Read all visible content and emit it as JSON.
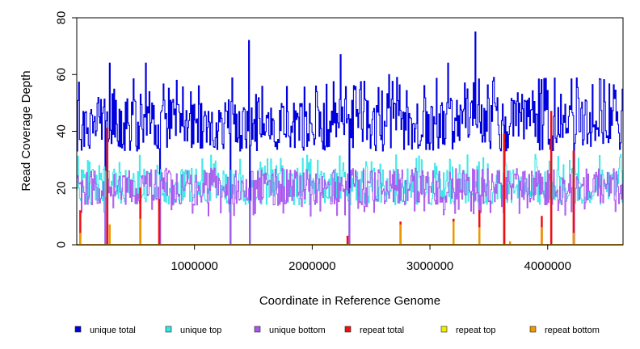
{
  "chart_data": {
    "type": "line",
    "title": "",
    "xlabel": "Coordinate in Reference Genome",
    "ylabel": "Read Coverage Depth",
    "xlim": [
      0,
      4640000
    ],
    "ylim": [
      0,
      80
    ],
    "x_ticks": [
      1000000,
      2000000,
      3000000,
      4000000
    ],
    "x_tick_labels": [
      "1000000",
      "2000000",
      "3000000",
      "4000000"
    ],
    "y_ticks": [
      0,
      20,
      40,
      60,
      80
    ],
    "y_tick_labels": [
      "0",
      "20",
      "40",
      "60",
      "80"
    ],
    "grid": false,
    "legend_position": "bottom",
    "colors": {
      "unique_total": "#0000dd",
      "unique_top": "#33e6e6",
      "unique_bottom": "#aa55ee",
      "repeat_total": "#ee1111",
      "repeat_top": "#eeee00",
      "repeat_bottom": "#ee9900"
    },
    "legend": [
      {
        "label": "unique total",
        "color": "#0000dd"
      },
      {
        "label": "unique top",
        "color": "#33e6e6"
      },
      {
        "label": "unique bottom",
        "color": "#aa55ee"
      },
      {
        "label": "repeat total",
        "color": "#ee1111"
      },
      {
        "label": "repeat top",
        "color": "#eeee00"
      },
      {
        "label": "repeat bottom",
        "color": "#ee9900"
      }
    ],
    "unique_total_typical_range": [
      33,
      52
    ],
    "unique_strand_typical_range": [
      14,
      27
    ],
    "unique_total_peaks": [
      {
        "x": 280000,
        "y": 64
      },
      {
        "x": 580000,
        "y": 64
      },
      {
        "x": 1460000,
        "y": 72
      },
      {
        "x": 2240000,
        "y": 67
      },
      {
        "x": 2650000,
        "y": 60
      },
      {
        "x": 3380000,
        "y": 75
      },
      {
        "x": 3150000,
        "y": 64
      },
      {
        "x": 3540000,
        "y": 59
      }
    ],
    "coverage_drops": [
      {
        "x": 240000,
        "y": 0
      },
      {
        "x": 700000,
        "y": 0
      },
      {
        "x": 1300000,
        "y": 0
      },
      {
        "x": 1470000,
        "y": 0
      },
      {
        "x": 2310000,
        "y": 0
      },
      {
        "x": 3630000,
        "y": 0
      },
      {
        "x": 4030000,
        "y": 0
      },
      {
        "x": 4220000,
        "y": 0
      }
    ],
    "repeat_total_events": [
      {
        "x": 30000,
        "y": 12
      },
      {
        "x": 260000,
        "y": 41
      },
      {
        "x": 540000,
        "y": 20
      },
      {
        "x": 700000,
        "y": 16
      },
      {
        "x": 2300000,
        "y": 3
      },
      {
        "x": 2750000,
        "y": 8
      },
      {
        "x": 3200000,
        "y": 9
      },
      {
        "x": 3420000,
        "y": 12
      },
      {
        "x": 3630000,
        "y": 39
      },
      {
        "x": 3950000,
        "y": 10
      },
      {
        "x": 4030000,
        "y": 47
      },
      {
        "x": 4220000,
        "y": 33
      }
    ],
    "repeat_bottom_events": [
      {
        "x": 30000,
        "y": 4
      },
      {
        "x": 280000,
        "y": 7
      },
      {
        "x": 540000,
        "y": 9
      },
      {
        "x": 2750000,
        "y": 7
      },
      {
        "x": 3200000,
        "y": 8
      },
      {
        "x": 3420000,
        "y": 6
      },
      {
        "x": 3680000,
        "y": 1
      },
      {
        "x": 3950000,
        "y": 6
      },
      {
        "x": 4220000,
        "y": 4
      }
    ]
  }
}
